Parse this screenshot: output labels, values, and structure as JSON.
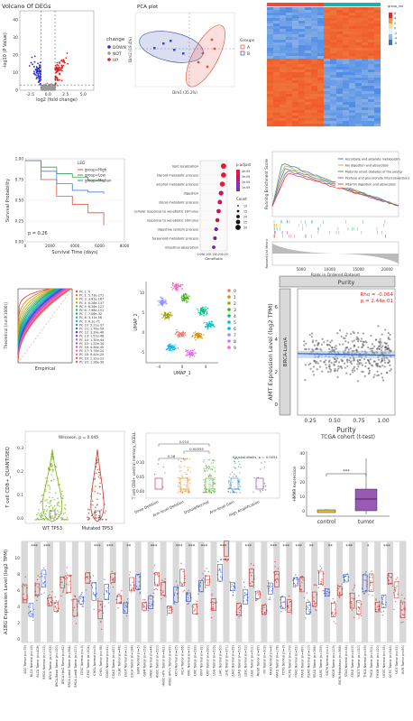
{
  "chart_data": [
    {
      "type": "scatter",
      "panel": "volcano",
      "title": "Volcano Of DEGs",
      "xlabel": "log2 (fold change)",
      "ylabel": "-log10 (P Value)",
      "xticks": [
        "-2.5",
        "0.0",
        "2.5",
        "5.0"
      ],
      "yticks": [
        "0",
        "10",
        "20",
        "30",
        "40"
      ],
      "legend_title": "change",
      "legend": [
        {
          "name": "DOWN",
          "color": "#2b2bd6"
        },
        {
          "name": "NOT",
          "color": "#9a9a9a"
        },
        {
          "name": "UP",
          "color": "#e02020"
        }
      ]
    },
    {
      "type": "scatter",
      "panel": "pca",
      "title": "PCA plot",
      "xlabel": "Dim1 (35.2%)",
      "ylabel": "Dim2 (19.4%)",
      "legend_title": "Groups",
      "legend": [
        {
          "name": "A",
          "color": "#e74c3c"
        },
        {
          "name": "B",
          "color": "#3949ab"
        }
      ]
    },
    {
      "type": "heatmap",
      "panel": "heatmap",
      "legend_title": "group_list",
      "legend_values": [
        "6",
        "4",
        "2",
        "0",
        "-2",
        "-4",
        "-6"
      ]
    },
    {
      "type": "line",
      "panel": "survival",
      "xlabel": "Survival Time (days)",
      "ylabel": "Survival Probability",
      "xticks": [
        "0",
        "2000",
        "4000",
        "6000",
        "8000"
      ],
      "yticks": [
        "0.00",
        "0.25",
        "0.50",
        "0.75",
        "1.00"
      ],
      "legend_title": "LEG",
      "series": [
        {
          "name": "group=High",
          "color": "#e74c3c"
        },
        {
          "name": "group=Low",
          "color": "#3aa15b"
        },
        {
          "name": "group=Median",
          "color": "#4a7fd4"
        }
      ],
      "annotation": "p = 0.26"
    },
    {
      "type": "scatter",
      "panel": "dotplot",
      "xlabel": "GeneRatio",
      "xticks": [
        "0.05",
        "0.10",
        "0.15",
        "0.20",
        "0.25"
      ],
      "categories": [
        "lipid localization",
        "steroid metabolic process",
        "alcohol metabolic process",
        "digestion",
        "sterol metabolic process",
        "cellular response to xenobiotic stimulus",
        "response to xenobiotic stimulus",
        "digestive system process",
        "terpenoid metabolic process",
        "intestinal absorption"
      ],
      "values": [
        0.24,
        0.24,
        0.23,
        0.22,
        0.21,
        0.2,
        0.19,
        0.18,
        0.17,
        0.16
      ],
      "size_title": "Count",
      "size_values": [
        "10",
        "15",
        "20",
        "25",
        "30"
      ],
      "color_title": "p.adjust",
      "color_values": [
        "4e-09",
        "3e-09",
        "2e-09",
        "1e-09"
      ]
    },
    {
      "type": "line",
      "panel": "gsea",
      "ylabel": "Running Enrichment Score",
      "ylabel2": "Ranked List Metric",
      "xlabel": "Rank in Ordered Dataset",
      "xticks": [
        "5000",
        "10000",
        "15000",
        "20000"
      ],
      "series": [
        {
          "name": "Ascorbate and aldarate metabolism",
          "color": "#3f7fd1"
        },
        {
          "name": "Fat digestion and absorption",
          "color": "#e0a63a"
        },
        {
          "name": "Maturity onset diabetes of the young",
          "color": "#3aa15b"
        },
        {
          "name": "Pentose and glucuronate interconversions",
          "color": "#9b59b6"
        },
        {
          "name": "Vitamin digestion and absorption",
          "color": "#e74c3c"
        }
      ]
    },
    {
      "type": "line",
      "panel": "pc-qq",
      "xlabel": "Empirical",
      "ylabel": "Theoretical [runif(1000)]",
      "series": [
        {
          "name": "PC 1: 0",
          "color": "#e74c3c"
        },
        {
          "name": "PC 2: 5.73e-271",
          "color": "#e67e22"
        },
        {
          "name": "PC 3: 3.41e-167",
          "color": "#d4ac0d"
        },
        {
          "name": "PC 4: 6.28e-137",
          "color": "#a4b32b"
        },
        {
          "name": "PC 5: 6.28e-127",
          "color": "#6ab04c"
        },
        {
          "name": "PC 6: 7.98e-151",
          "color": "#27ae60"
        },
        {
          "name": "PC 7: 7.06e-32",
          "color": "#16a085"
        },
        {
          "name": "PC 8: 3.11e-56",
          "color": "#1abc9c"
        },
        {
          "name": "PC 9: 6.1e-71",
          "color": "#00b4c5"
        },
        {
          "name": "PC 10: 5.21e-37",
          "color": "#2e86de"
        },
        {
          "name": "PC 11: 1.76e-59",
          "color": "#3867d6"
        },
        {
          "name": "PC 12: 3.39e-46",
          "color": "#5f27cd"
        },
        {
          "name": "PC 13: 1.57e-48",
          "color": "#8e44ad"
        },
        {
          "name": "PC 14: 1.35e-44",
          "color": "#a55eea"
        },
        {
          "name": "PC 15: 1.22e-34",
          "color": "#c44dbd"
        },
        {
          "name": "PC 16: 4.46e-45",
          "color": "#e056a0"
        },
        {
          "name": "PC 17: 3.74e-24",
          "color": "#f368e0"
        },
        {
          "name": "PC 18: 9.41e-20",
          "color": "#ff6b81"
        },
        {
          "name": "PC 19: 2.32e-22",
          "color": "#ff4757"
        },
        {
          "name": "PC 20: 1.26e-30",
          "color": "#e15f41"
        }
      ]
    },
    {
      "type": "scatter",
      "panel": "umap",
      "xlabel": "UMAP_1",
      "ylabel": "UMAP_2",
      "xticks": [
        "-4",
        "0",
        "4"
      ],
      "yticks": [
        "-5",
        "0",
        "5",
        "10"
      ],
      "legend": [
        {
          "name": "0",
          "color": "#f8766d"
        },
        {
          "name": "1",
          "color": "#d89000"
        },
        {
          "name": "2",
          "color": "#a3a500"
        },
        {
          "name": "3",
          "color": "#39b600"
        },
        {
          "name": "4",
          "color": "#00bf7d"
        },
        {
          "name": "5",
          "color": "#00bfc4"
        },
        {
          "name": "6",
          "color": "#00b0f6"
        },
        {
          "name": "7",
          "color": "#9590ff"
        },
        {
          "name": "8",
          "color": "#e76bf3"
        },
        {
          "name": "9",
          "color": "#ff62bc"
        }
      ]
    },
    {
      "type": "scatter",
      "panel": "purity",
      "title": "Purity",
      "strip_label": "BRCA-LumA",
      "xlabel": "Purity",
      "ylabel": "AMT Expression Level (log2 TPM)",
      "xticks": [
        "0.25",
        "0.50",
        "0.75",
        "1.00"
      ],
      "yticks": [
        "0",
        "2",
        "4",
        "6"
      ],
      "annotation_rho": "Rho = -0.064",
      "annotation_p": "p = 2.44e-01"
    },
    {
      "type": "scatter",
      "panel": "violin-tp53",
      "ylabel": "T cell CD8+_QUANTISEQ",
      "categories": [
        "WT TP53",
        "Mutated TP53"
      ],
      "yticks": [
        "0.0",
        "0.1",
        "0.2",
        "0.3"
      ],
      "annotation": "Wilcoxon, p = 0.045"
    },
    {
      "type": "scatter",
      "panel": "cna-boxplot",
      "ylabel": "T cell CD8+ central memory_XCELL",
      "categories": [
        "Deep Deletion",
        "Arm-level Deletion",
        "Diploid/Normal",
        "Arm-level Gain",
        "High Amplification"
      ],
      "yticks": [
        "0.00",
        "0.05",
        "0.10"
      ],
      "brackets": [
        "0.014",
        "0.00055",
        "0.28"
      ],
      "annotation": "Kruskal-Wallis, p = 0.0051"
    },
    {
      "type": "bar",
      "panel": "tcga-boxplot",
      "title": "TCGA cohort (t-test)",
      "ylabel": "HMMR expression",
      "categories": [
        "control",
        "tumor"
      ],
      "yticks": [
        "0",
        "10",
        "20",
        "30",
        "40"
      ],
      "significance": "***"
    },
    {
      "type": "bar",
      "panel": "pancancer",
      "ylabel": "A1BG Expression Level (log2 TPM)",
      "yticks": [
        "0",
        "2",
        "4",
        "6",
        "8",
        "10"
      ],
      "categories": [
        "ACC Tumor (n=79)",
        "BLCA Normal (n=19)",
        "BLCA Tumor (n=408)",
        "BRCA Normal (n=112)",
        "BRCA Tumor (n=1093)",
        "BRCA-Basal Tumor (n=190)",
        "BRCA-Her2 Tumor (n=82)",
        "BRCA-LumA Tumor (n=564)",
        "BRCA-LumB Tumor (n=217)",
        "CESC Normal (n=3)",
        "CESC Tumor (n=304)",
        "CHOL Normal (n=9)",
        "CHOL Tumor (n=36)",
        "COAD Normal (n=41)",
        "COAD Tumor (n=457)",
        "DLBC Tumor (n=48)",
        "ESCA Normal (n=11)",
        "ESCA Tumor (n=184)",
        "GBM Normal (n=5)",
        "GBM Tumor (n=153)",
        "HNSC Normal (n=44)",
        "HNSC Tumor (n=520)",
        "HNSC-HPV- Tumor (n=421)",
        "HNSC-HPV+ Tumor (n=97)",
        "KICH Normal (n=25)",
        "KICH Tumor (n=66)",
        "KIRC Normal (n=72)",
        "KIRC Tumor (n=533)",
        "KIRP Normal (n=32)",
        "KIRP Tumor (n=290)",
        "LGG Tumor (n=516)",
        "LIHC Normal (n=50)",
        "LIHC Tumor (n=371)",
        "LUAD Normal (n=59)",
        "LUAD Tumor (n=515)",
        "LUSC Normal (n=52)",
        "LUSC Tumor (n=501)",
        "MESO Tumor (n=87)",
        "OV Tumor (n=303)",
        "PAAD Normal (n=4)",
        "PAAD Tumor (n=178)",
        "PCPG Normal (n=3)",
        "PCPG Tumor (n=179)",
        "PRAD Normal (n=52)",
        "PRAD Tumor (n=497)",
        "READ Normal (n=10)",
        "READ Tumor (n=166)",
        "SARC Tumor (n=259)",
        "SKCM Normal (n=1)",
        "SKCM Tumor (n=103)",
        "SKCM-Metastasis (n=368)",
        "STAD Normal (n=34)",
        "STAD Tumor (n=415)",
        "TGCT Tumor (n=150)",
        "THCA Normal (n=59)",
        "THCA Tumor (n=501)",
        "THYM Tumor (n=120)",
        "UCEC Normal (n=35)",
        "UCEC Tumor (n=545)",
        "UCS Tumor (n=57)",
        "UVM Tumor (n=80)"
      ],
      "significance": [
        {
          "index": 2,
          "label": "***"
        },
        {
          "index": 4,
          "label": "***"
        },
        {
          "index": 12,
          "label": "***"
        },
        {
          "index": 14,
          "label": "***"
        },
        {
          "index": 17,
          "label": "**"
        },
        {
          "index": 21,
          "label": "***"
        },
        {
          "index": 25,
          "label": "***"
        },
        {
          "index": 27,
          "label": "***"
        },
        {
          "index": 29,
          "label": "***"
        },
        {
          "index": 32,
          "label": "***"
        },
        {
          "index": 36,
          "label": "***"
        },
        {
          "index": 40,
          "label": "***"
        },
        {
          "index": 42,
          "label": "***"
        },
        {
          "index": 44,
          "label": "***"
        },
        {
          "index": 46,
          "label": "**"
        },
        {
          "index": 49,
          "label": "**"
        },
        {
          "index": 52,
          "label": "***"
        },
        {
          "index": 55,
          "label": "*"
        },
        {
          "index": 58,
          "label": "***"
        }
      ]
    }
  ]
}
